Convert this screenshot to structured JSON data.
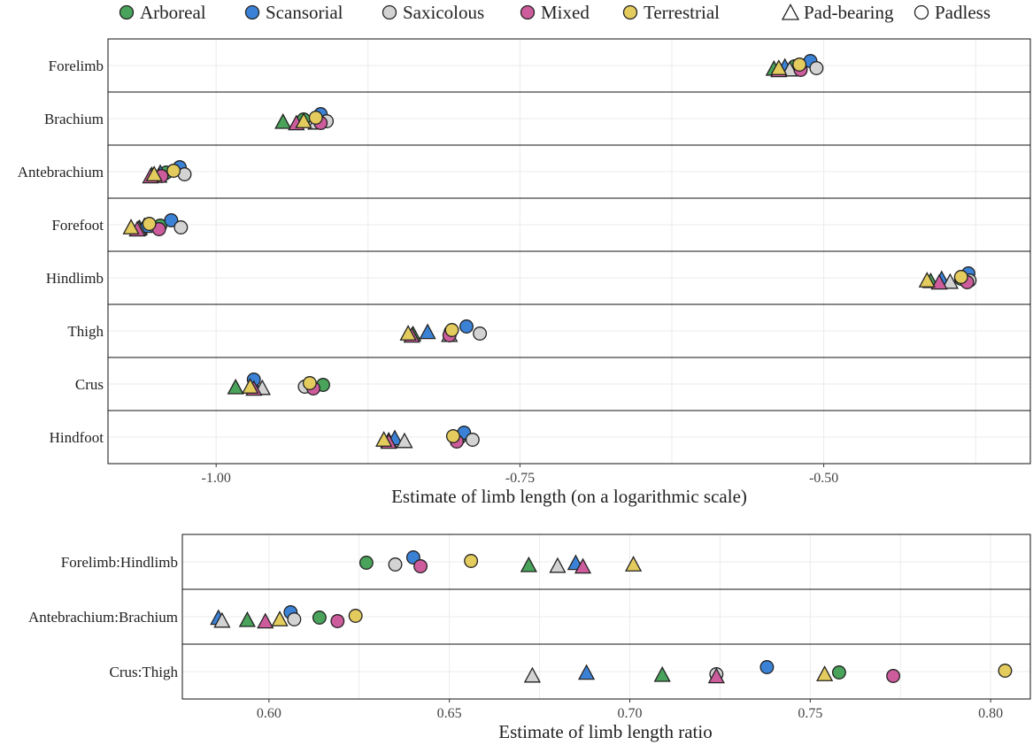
{
  "legend": {
    "groups": [
      {
        "key": "arboreal",
        "label": "Arboreal",
        "color": "#4aa35a"
      },
      {
        "key": "scansorial",
        "label": "Scansorial",
        "color": "#3b82d6"
      },
      {
        "key": "saxicolous",
        "label": "Saxicolous",
        "color": "#d3d3d3"
      },
      {
        "key": "mixed",
        "label": "Mixed",
        "color": "#cc5c9b"
      },
      {
        "key": "terrestrial",
        "label": "Terrestrial",
        "color": "#e3cb5e"
      }
    ],
    "shapes": [
      {
        "key": "pad",
        "label": "Pad-bearing",
        "shape": "triangle"
      },
      {
        "key": "padless",
        "label": "Padless",
        "shape": "circle"
      }
    ]
  },
  "chart_data": [
    {
      "type": "scatter",
      "xlabel": "Estimate of limb length (on a logarithmic scale)",
      "xlim": [
        -1.089,
        -0.33
      ],
      "xticks": [
        -1.0,
        -0.75,
        -0.5
      ],
      "xtick_labels": [
        "-1.00",
        "-0.75",
        "-0.50"
      ],
      "grid": true,
      "categories": [
        "Forelimb",
        "Brachium",
        "Antebrachium",
        "Forefoot",
        "Hindlimb",
        "Thigh",
        "Crus",
        "Hindfoot"
      ],
      "series": [
        {
          "name": "Arboreal",
          "pad": [
            -0.541,
            -0.945,
            -1.053,
            -1.063,
            -0.412,
            -0.838,
            -0.984,
            -0.858
          ],
          "padless": [
            -0.524,
            -0.928,
            -1.041,
            -1.046,
            -0.387,
            -0.807,
            -0.912,
            -0.8
          ]
        },
        {
          "name": "Scansorial",
          "pad": [
            -0.532,
            -0.915,
            -1.046,
            -1.059,
            -0.403,
            -0.826,
            -0.969,
            -0.853
          ],
          "padless": [
            -0.511,
            -0.914,
            -1.03,
            -1.037,
            -0.381,
            -0.794,
            -0.969,
            -0.796
          ]
        },
        {
          "name": "Saxicolous",
          "pad": [
            -0.528,
            -0.918,
            -1.047,
            -1.064,
            -0.396,
            -0.808,
            -0.962,
            -0.845
          ],
          "padless": [
            -0.506,
            -0.909,
            -1.026,
            -1.029,
            -0.38,
            -0.783,
            -0.927,
            -0.789
          ]
        },
        {
          "name": "Mixed",
          "pad": [
            -0.537,
            -0.934,
            -1.054,
            -1.065,
            -0.405,
            -0.839,
            -0.969,
            -0.858
          ],
          "padless": [
            -0.519,
            -0.914,
            -1.045,
            -1.047,
            -0.382,
            -0.808,
            -0.92,
            -0.802
          ]
        },
        {
          "name": "Terrestrial",
          "pad": [
            -0.537,
            -0.928,
            -1.051,
            -1.07,
            -0.415,
            -0.842,
            -0.972,
            -0.862
          ],
          "padless": [
            -0.52,
            -0.918,
            -1.035,
            -1.055,
            -0.387,
            -0.806,
            -0.923,
            -0.805
          ]
        }
      ]
    },
    {
      "type": "scatter",
      "xlabel": "Estimate of limb length ratio",
      "xlim": [
        0.576,
        0.811
      ],
      "xticks": [
        0.6,
        0.65,
        0.7,
        0.75,
        0.8
      ],
      "xtick_labels": [
        "0.60",
        "0.65",
        "0.70",
        "0.75",
        "0.80"
      ],
      "grid": true,
      "categories": [
        "Forelimb:Hindlimb",
        "Antebrachium:Brachium",
        "Crus:Thigh"
      ],
      "series": [
        {
          "name": "Arboreal",
          "pad": [
            0.672,
            0.594,
            0.709
          ],
          "padless": [
            0.627,
            0.614,
            0.758
          ]
        },
        {
          "name": "Scansorial",
          "pad": [
            0.685,
            0.586,
            0.688
          ],
          "padless": [
            0.64,
            0.606,
            0.738
          ]
        },
        {
          "name": "Saxicolous",
          "pad": [
            0.68,
            0.587,
            0.673
          ],
          "padless": [
            0.635,
            0.607,
            0.724
          ]
        },
        {
          "name": "Mixed",
          "pad": [
            0.687,
            0.599,
            0.724
          ],
          "padless": [
            0.642,
            0.619,
            0.773
          ]
        },
        {
          "name": "Terrestrial",
          "pad": [
            0.701,
            0.603,
            0.754
          ],
          "padless": [
            0.656,
            0.624,
            0.804
          ]
        }
      ]
    }
  ]
}
